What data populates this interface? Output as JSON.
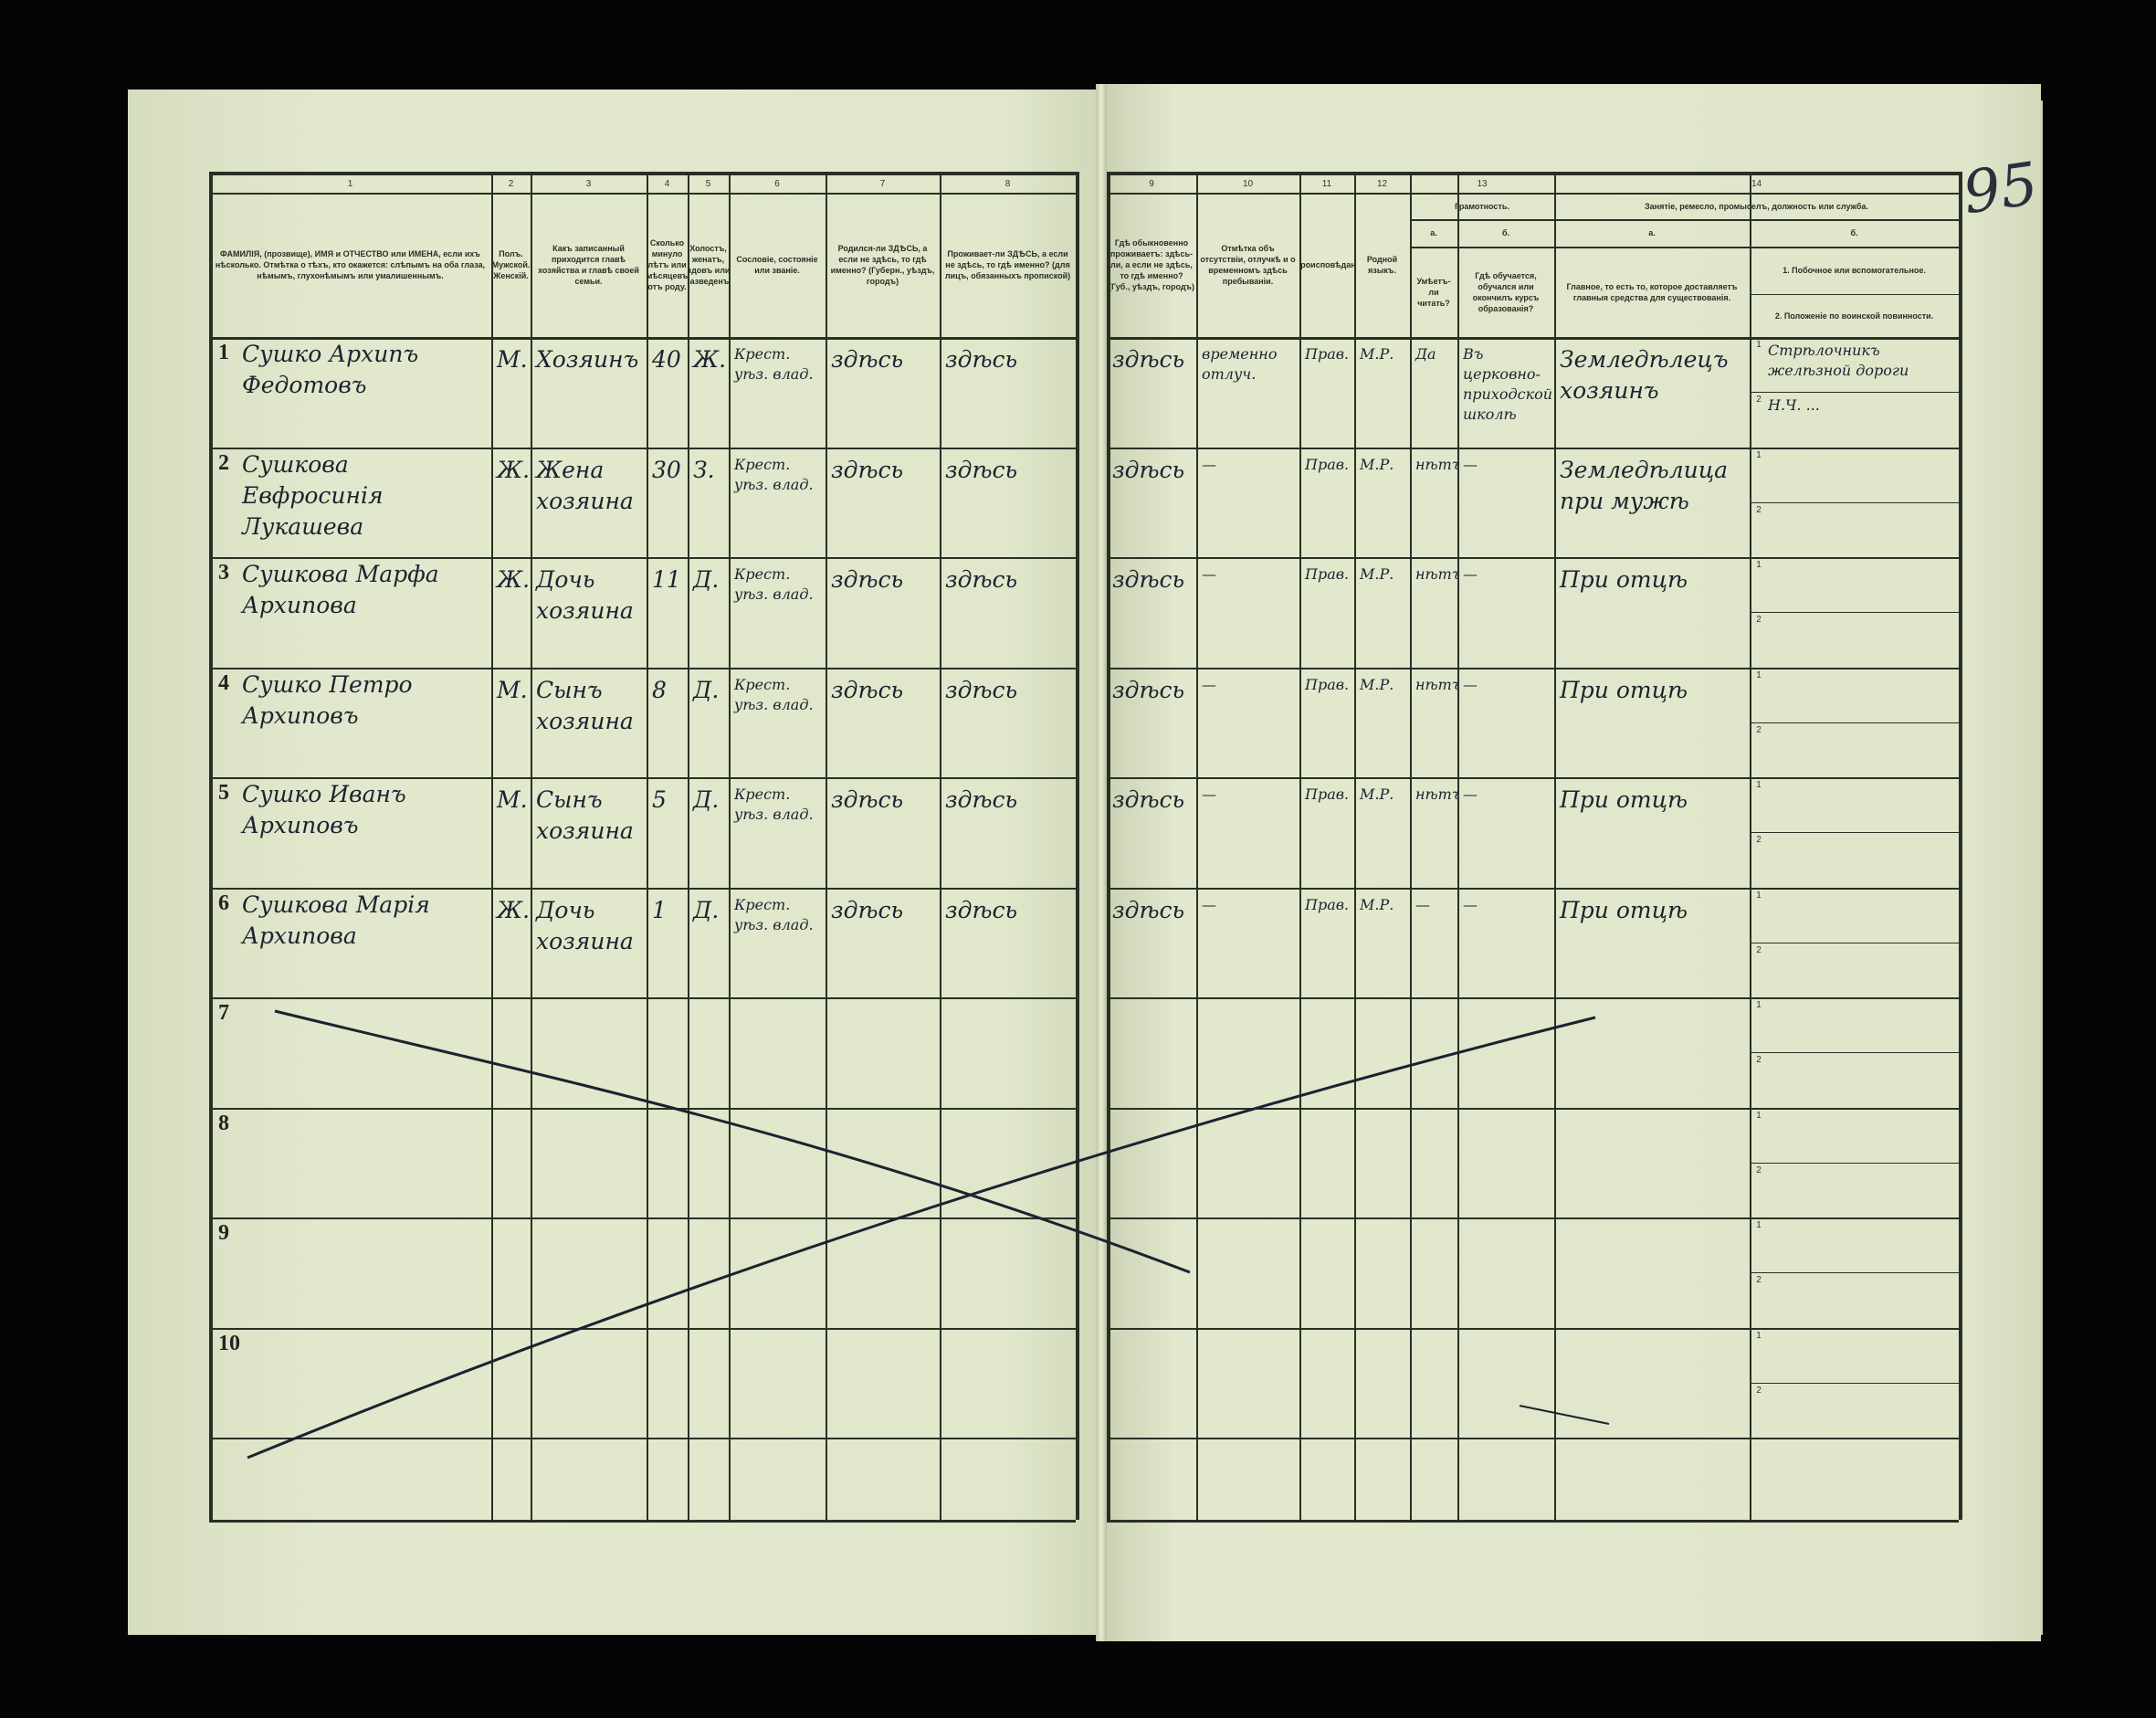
{
  "page_number": "95",
  "header": {
    "col_numbers": [
      "1",
      "2",
      "3",
      "4",
      "5",
      "6",
      "7",
      "8",
      "9",
      "10",
      "11",
      "12",
      "13",
      "14"
    ],
    "columns": [
      "ФАМИЛІЯ, (прозвище), ИМЯ и ОТЧЕСТВО или ИМЕНА, если ихъ нѣсколько. Отмѣтка о тѣхъ, кто окажется: слѣпымъ на оба глаза, нѣмымъ, глухонѣмымъ или умалишеннымъ.",
      "Полъ. Мужской. Женскій.",
      "Какъ записанный приходится главѣ хозяйства и главѣ своей семьи.",
      "Сколько минуло лѣтъ или мѣсяцевъ отъ роду.",
      "Холостъ, женатъ, вдовъ или разведенъ.",
      "Сословіе, состояніе или званіе.",
      "Родился-ли ЗДѢСЬ, а если не здѣсь, то гдѣ именно? (Губерн., уѣздъ, городъ)",
      "Проживает-ли ЗДѢСЬ, а если не здѣсь, то гдѣ именно? (для лицъ, обязанныхъ пропиской)",
      "Гдѣ обыкновенно проживаетъ: здѣсь-ли, а если не здѣсь, то гдѣ именно? (Губ., уѣздъ, городъ)",
      "Отмѣтка объ отсутствіи, отлучкѣ и о временномъ здѣсь пребываніи.",
      "Вѣроисповѣданіе.",
      "Родной языкъ."
    ],
    "literacy": {
      "title": "Грамотность.",
      "a_label": "а.",
      "b_label": "б.",
      "a": "Умѣетъ-ли читать?",
      "b": "Гдѣ обучается, обучался или окончилъ курсъ образованія?"
    },
    "occupation": {
      "title": "Занятіе, ремесло, промыселъ, должность или служба.",
      "a_label": "а.",
      "b_label": "б.",
      "a": "Главное, то есть то, которое доставляетъ главныя средства для существованія.",
      "b1": "1. Побочное или вспомогательное.",
      "b2": "2. Положеніе по воинской повинности."
    }
  },
  "rows": [
    {
      "n": "1",
      "name": "Сушко Архипъ Федотовъ",
      "sex": "М.",
      "relation": "Хозяинъ",
      "age": "40",
      "marital": "Ж.",
      "estate": "Крест. уѣз. влад.",
      "born": "здѣсь",
      "lives": "здѣсь",
      "usual": "здѣсь",
      "absence": "временно отлуч.",
      "religion": "Прав.",
      "language": "М.Р.",
      "reads": "Да",
      "education": "Въ церковно-приходской школѣ",
      "main": "Земледѣлецъ хозяинъ",
      "side1": "Стрѣлочникъ желѣзной дороги",
      "side2": "Н.Ч. ..."
    },
    {
      "n": "2",
      "name": "Сушкова Евфросинія Лукашева",
      "sex": "Ж.",
      "relation": "Жена хозяина",
      "age": "30",
      "marital": "З.",
      "estate": "Крест. уѣз. влад.",
      "born": "здѣсь",
      "lives": "здѣсь",
      "usual": "здѣсь",
      "absence": "—",
      "religion": "Прав.",
      "language": "М.Р.",
      "reads": "нѣтъ",
      "education": "—",
      "main": "Земледѣлица при мужѣ",
      "side1": "",
      "side2": ""
    },
    {
      "n": "3",
      "name": "Сушкова Марфа Архипова",
      "sex": "Ж.",
      "relation": "Дочь хозяина",
      "age": "11",
      "marital": "Д.",
      "estate": "Крест. уѣз. влад.",
      "born": "здѣсь",
      "lives": "здѣсь",
      "usual": "здѣсь",
      "absence": "—",
      "religion": "Прав.",
      "language": "М.Р.",
      "reads": "нѣтъ",
      "education": "—",
      "main": "При отцѣ",
      "side1": "",
      "side2": ""
    },
    {
      "n": "4",
      "name": "Сушко Петро Архиповъ",
      "sex": "М.",
      "relation": "Сынъ хозяина",
      "age": "8",
      "marital": "Д.",
      "estate": "Крест. уѣз. влад.",
      "born": "здѣсь",
      "lives": "здѣсь",
      "usual": "здѣсь",
      "absence": "—",
      "religion": "Прав.",
      "language": "М.Р.",
      "reads": "нѣтъ",
      "education": "—",
      "main": "При отцѣ",
      "side1": "",
      "side2": ""
    },
    {
      "n": "5",
      "name": "Сушко Иванъ Архиповъ",
      "sex": "М.",
      "relation": "Сынъ хозяина",
      "age": "5",
      "marital": "Д.",
      "estate": "Крест. уѣз. влад.",
      "born": "здѣсь",
      "lives": "здѣсь",
      "usual": "здѣсь",
      "absence": "—",
      "religion": "Прав.",
      "language": "М.Р.",
      "reads": "нѣтъ",
      "education": "—",
      "main": "При отцѣ",
      "side1": "",
      "side2": ""
    },
    {
      "n": "6",
      "name": "Сушкова Марія Архипова",
      "sex": "Ж.",
      "relation": "Дочь хозяина",
      "age": "1",
      "marital": "Д.",
      "estate": "Крест. уѣз. влад.",
      "born": "здѣсь",
      "lives": "здѣсь",
      "usual": "здѣсь",
      "absence": "—",
      "religion": "Прав.",
      "language": "М.Р.",
      "reads": "—",
      "education": "—",
      "main": "При отцѣ",
      "side1": "",
      "side2": ""
    },
    {
      "n": "7"
    },
    {
      "n": "8"
    },
    {
      "n": "9"
    },
    {
      "n": "10"
    }
  ],
  "subrow_labels": [
    "1",
    "2"
  ],
  "colors": {
    "paper": "#dfe6c9",
    "ink": "#1d2230",
    "rules": "#2a2f26",
    "background": "#050505"
  }
}
